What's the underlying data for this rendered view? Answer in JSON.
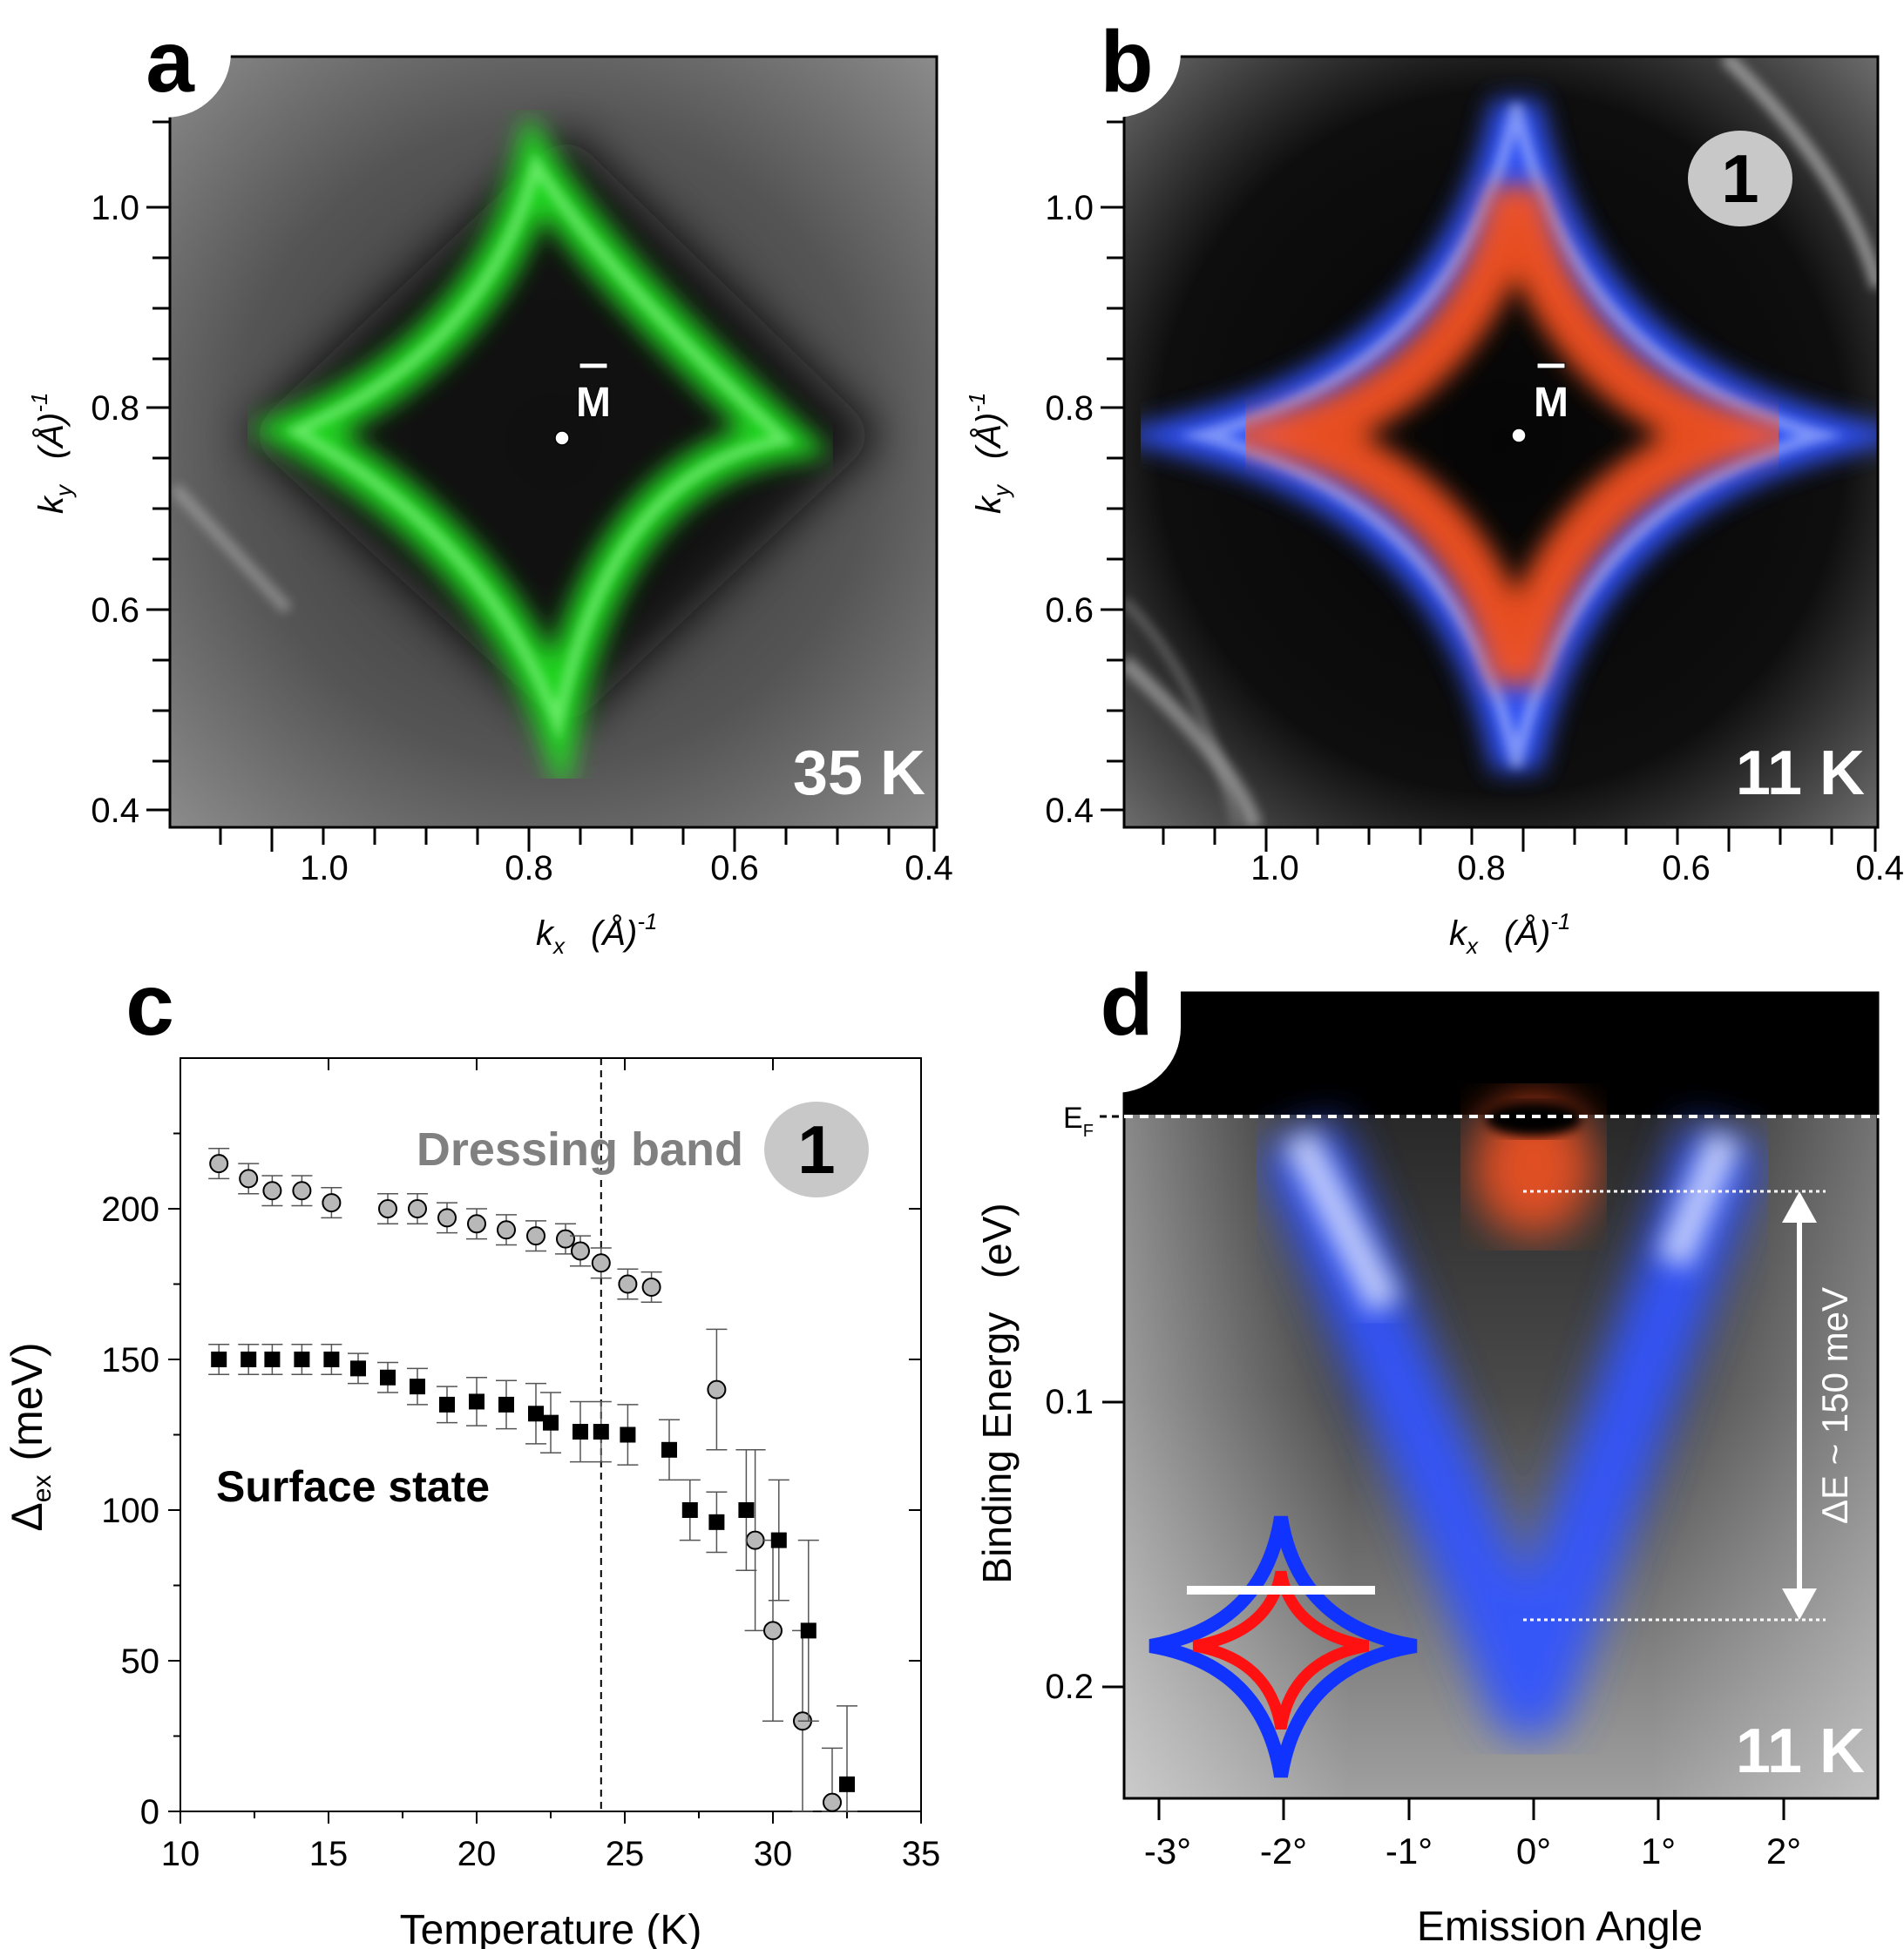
{
  "panel_a": {
    "letter": "a",
    "temp_label": "35 K",
    "point_label": "M",
    "xlabel_var": "k",
    "xlabel_sub": "x",
    "xlabel_unit": "(Å)",
    "xlabel_exp": "-1",
    "ylabel_var": "k",
    "ylabel_sub": "y",
    "ylabel_unit": "(Å)",
    "ylabel_exp": "-1",
    "xticks": [
      "1.0",
      "0.8",
      "0.6",
      "0.4"
    ],
    "yticks": [
      "1.0",
      "0.8",
      "0.6",
      "0.4"
    ],
    "colors": {
      "band": "#22dd22"
    }
  },
  "panel_b": {
    "letter": "b",
    "temp_label": "11 K",
    "point_label": "M",
    "badge": "1",
    "xlabel_var": "k",
    "xlabel_sub": "x",
    "xlabel_unit": "(Å)",
    "xlabel_exp": "-1",
    "ylabel_var": "k",
    "ylabel_sub": "y",
    "ylabel_unit": "(Å)",
    "ylabel_exp": "-1",
    "xticks": [
      "1.0",
      "0.8",
      "0.6",
      "0.4"
    ],
    "yticks": [
      "1.0",
      "0.8",
      "0.6",
      "0.4"
    ],
    "colors": {
      "outer": "#3355ff",
      "inner": "#ff5522"
    }
  },
  "panel_c": {
    "letter": "c",
    "badge": "1",
    "ylabel_main": "Δ",
    "ylabel_sub": "ex",
    "ylabel_unit": "(meV)"
  },
  "panel_d": {
    "letter": "d",
    "temp_label": "11 K",
    "ef_main": "E",
    "ef_sub": "F",
    "arrow_label": "ΔE ~ 150 meV",
    "xlabel": "Emission Angle",
    "ylabel": "Binding Energy   (eV)",
    "xticks": [
      "-3°",
      "-2°",
      "-1°",
      "0°",
      "1°",
      "2°"
    ],
    "yticks": [
      "0.1",
      "0.2"
    ]
  },
  "chart_data": {
    "type": "scatter",
    "title": "",
    "xlabel": "Temperature (K)",
    "ylabel": "Δex (meV)",
    "xlim": [
      10,
      35
    ],
    "ylim": [
      0,
      250
    ],
    "xticks": [
      10,
      15,
      20,
      25,
      30,
      35
    ],
    "yticks": [
      0,
      50,
      100,
      150,
      200
    ],
    "vline_x": 24.2,
    "series": [
      {
        "name": "Dressing band",
        "marker": "circle",
        "color": "#b8b8b8",
        "x": [
          11.3,
          12.3,
          13.1,
          14.1,
          15.1,
          17.0,
          18.0,
          19.0,
          20.0,
          21.0,
          22.0,
          23.0,
          23.5,
          24.2,
          25.1,
          25.9,
          28.1,
          29.4,
          30.0,
          31.0,
          32.0
        ],
        "y": [
          215,
          210,
          206,
          206,
          202,
          200,
          200,
          197,
          195,
          193,
          191,
          190,
          186,
          182,
          175,
          174,
          140,
          90,
          60,
          30,
          3
        ],
        "err": [
          5,
          5,
          5,
          5,
          5,
          5,
          5,
          5,
          5,
          5,
          5,
          5,
          5,
          5,
          5,
          5,
          20,
          30,
          30,
          30,
          18
        ]
      },
      {
        "name": "Surface state",
        "marker": "square",
        "color": "#000000",
        "x": [
          11.3,
          12.3,
          13.1,
          14.1,
          15.1,
          16.0,
          17.0,
          18.0,
          19.0,
          20.0,
          21.0,
          22.0,
          22.5,
          23.5,
          24.2,
          25.1,
          26.5,
          27.2,
          28.1,
          29.1,
          30.2,
          31.2,
          32.5
        ],
        "y": [
          150,
          150,
          150,
          150,
          150,
          147,
          144,
          141,
          135,
          136,
          135,
          132,
          129,
          126,
          126,
          125,
          120,
          100,
          96,
          100,
          90,
          60,
          9
        ],
        "err": [
          5,
          5,
          5,
          5,
          5,
          5,
          5,
          6,
          6,
          8,
          8,
          10,
          10,
          10,
          10,
          10,
          10,
          10,
          10,
          20,
          20,
          30,
          26
        ]
      }
    ],
    "annotations": [
      "Dressing band",
      "Surface state"
    ]
  }
}
